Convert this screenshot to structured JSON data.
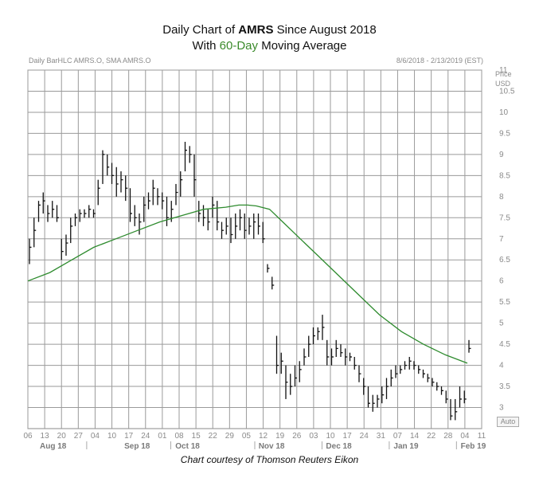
{
  "header": {
    "title_prefix": "Daily Chart of ",
    "ticker": "AMRS",
    "title_suffix": " Since August 2018",
    "subtitle_prefix": "With ",
    "subtitle_highlight": "60-Day",
    "subtitle_suffix": " Moving Average",
    "legend_left": "Daily BarHLC AMRS.O, SMA AMRS.O",
    "date_range": "8/6/2018 - 2/13/2019 (EST)",
    "price_label": "Price",
    "currency_label": "USD",
    "auto_label": "Auto"
  },
  "credit": "Chart courtesy of Thomson Reuters Eikon",
  "colors": {
    "bars": "#111111",
    "sma": "#2e8b2e",
    "grid": "#9a9a9a",
    "highlight": "#3a8a2a"
  },
  "chart_data": {
    "type": "bar",
    "ylim": [
      2.5,
      11
    ],
    "y_ticks": [
      3,
      3.5,
      4,
      4.5,
      5,
      5.5,
      6,
      6.5,
      7,
      7.5,
      8,
      8.5,
      9,
      9.5,
      10,
      10.5,
      11
    ],
    "grid": true,
    "x_day_ticks": [
      "06",
      "13",
      "20",
      "27",
      "04",
      "10",
      "17",
      "24",
      "01",
      "08",
      "15",
      "22",
      "29",
      "05",
      "12",
      "19",
      "26",
      "03",
      "10",
      "17",
      "24",
      "31",
      "07",
      "14",
      "22",
      "28",
      "04",
      "11"
    ],
    "month_labels": [
      "Aug 18",
      "Sep 18",
      "Oct 18",
      "Nov 18",
      "Dec 18",
      "Jan 19",
      "Feb 19"
    ],
    "series": [
      {
        "name": "Daily BarHLC AMRS.O",
        "ohlc_hlc": [
          [
            7.0,
            6.4,
            6.8
          ],
          [
            7.5,
            6.8,
            7.2
          ],
          [
            7.9,
            7.4,
            7.8
          ],
          [
            8.1,
            7.6,
            7.9
          ],
          [
            7.8,
            7.4,
            7.6
          ],
          [
            7.9,
            7.5,
            7.7
          ],
          [
            7.8,
            7.4,
            7.5
          ],
          [
            7.0,
            6.5,
            6.7
          ],
          [
            7.1,
            6.6,
            6.9
          ],
          [
            7.5,
            6.9,
            7.3
          ],
          [
            7.6,
            7.3,
            7.5
          ],
          [
            7.7,
            7.4,
            7.6
          ],
          [
            7.7,
            7.5,
            7.6
          ],
          [
            7.8,
            7.5,
            7.7
          ],
          [
            7.7,
            7.5,
            7.6
          ],
          [
            8.4,
            7.8,
            8.2
          ],
          [
            9.1,
            8.3,
            9.0
          ],
          [
            9.0,
            8.5,
            8.7
          ],
          [
            8.8,
            8.3,
            8.5
          ],
          [
            8.7,
            8.0,
            8.3
          ],
          [
            8.6,
            8.1,
            8.4
          ],
          [
            8.5,
            7.9,
            8.2
          ],
          [
            8.2,
            7.4,
            7.6
          ],
          [
            7.8,
            7.3,
            7.5
          ],
          [
            7.6,
            7.1,
            7.4
          ],
          [
            8.0,
            7.4,
            7.8
          ],
          [
            8.1,
            7.7,
            7.9
          ],
          [
            8.4,
            7.8,
            8.2
          ],
          [
            8.2,
            7.8,
            8.0
          ],
          [
            8.1,
            7.7,
            7.9
          ],
          [
            8.0,
            7.3,
            7.5
          ],
          [
            7.9,
            7.4,
            7.7
          ],
          [
            8.3,
            7.8,
            8.1
          ],
          [
            8.6,
            8.0,
            8.4
          ],
          [
            9.3,
            8.6,
            9.1
          ],
          [
            9.2,
            8.8,
            9.0
          ],
          [
            9.0,
            8.0,
            8.4
          ],
          [
            7.9,
            7.4,
            7.6
          ],
          [
            7.8,
            7.3,
            7.5
          ],
          [
            7.7,
            7.2,
            7.4
          ],
          [
            8.0,
            7.5,
            7.8
          ],
          [
            7.9,
            7.2,
            7.4
          ],
          [
            7.4,
            7.0,
            7.2
          ],
          [
            7.5,
            7.1,
            7.3
          ],
          [
            7.5,
            6.9,
            7.1
          ],
          [
            7.6,
            7.0,
            7.3
          ],
          [
            7.7,
            7.2,
            7.5
          ],
          [
            7.6,
            7.0,
            7.2
          ],
          [
            7.5,
            7.1,
            7.3
          ],
          [
            7.6,
            7.0,
            7.4
          ],
          [
            7.6,
            7.1,
            7.3
          ],
          [
            7.4,
            6.9,
            7.0
          ],
          [
            6.4,
            6.2,
            6.3
          ],
          [
            6.1,
            5.8,
            5.9
          ],
          [
            4.7,
            3.8,
            4.0
          ],
          [
            4.3,
            3.8,
            4.1
          ],
          [
            4.0,
            3.2,
            3.6
          ],
          [
            3.8,
            3.3,
            3.5
          ],
          [
            4.0,
            3.5,
            3.7
          ],
          [
            4.1,
            3.6,
            3.9
          ],
          [
            4.4,
            4.0,
            4.2
          ],
          [
            4.7,
            4.2,
            4.5
          ],
          [
            4.9,
            4.5,
            4.7
          ],
          [
            4.9,
            4.6,
            4.8
          ],
          [
            5.2,
            4.6,
            4.9
          ],
          [
            4.6,
            4.0,
            4.2
          ],
          [
            4.4,
            4.0,
            4.2
          ],
          [
            4.6,
            4.2,
            4.4
          ],
          [
            4.5,
            4.2,
            4.3
          ],
          [
            4.4,
            4.0,
            4.2
          ],
          [
            4.3,
            4.1,
            4.2
          ],
          [
            4.2,
            3.9,
            4.0
          ],
          [
            4.0,
            3.6,
            3.8
          ],
          [
            3.7,
            3.3,
            3.5
          ],
          [
            3.5,
            3.0,
            3.1
          ],
          [
            3.3,
            2.9,
            3.1
          ],
          [
            3.3,
            3.0,
            3.2
          ],
          [
            3.5,
            3.1,
            3.3
          ],
          [
            3.7,
            3.2,
            3.5
          ],
          [
            3.9,
            3.5,
            3.7
          ],
          [
            4.0,
            3.7,
            3.8
          ],
          [
            4.0,
            3.8,
            3.9
          ],
          [
            4.1,
            3.9,
            4.0
          ],
          [
            4.2,
            3.9,
            4.1
          ],
          [
            4.1,
            3.9,
            4.0
          ],
          [
            4.0,
            3.8,
            3.9
          ],
          [
            3.9,
            3.7,
            3.8
          ],
          [
            3.8,
            3.6,
            3.7
          ],
          [
            3.7,
            3.5,
            3.6
          ],
          [
            3.6,
            3.4,
            3.5
          ],
          [
            3.5,
            3.3,
            3.4
          ],
          [
            3.4,
            3.1,
            3.2
          ],
          [
            3.2,
            2.7,
            2.8
          ],
          [
            3.2,
            2.7,
            2.9
          ],
          [
            3.5,
            3.0,
            3.2
          ],
          [
            3.4,
            3.1,
            3.2
          ],
          [
            4.6,
            4.3,
            4.4
          ]
        ]
      },
      {
        "name": "SMA AMRS.O",
        "x_fraction": [
          0.0,
          0.05,
          0.1,
          0.15,
          0.2,
          0.25,
          0.3,
          0.35,
          0.4,
          0.45,
          0.48,
          0.5,
          0.52,
          0.55,
          0.58,
          0.62,
          0.66,
          0.7,
          0.75,
          0.8,
          0.85,
          0.9,
          0.95,
          1.0
        ],
        "y": [
          6.0,
          6.2,
          6.5,
          6.8,
          7.0,
          7.2,
          7.4,
          7.55,
          7.7,
          7.75,
          7.8,
          7.8,
          7.78,
          7.7,
          7.4,
          7.0,
          6.6,
          6.2,
          5.7,
          5.2,
          4.8,
          4.5,
          4.25,
          4.05
        ]
      }
    ]
  }
}
